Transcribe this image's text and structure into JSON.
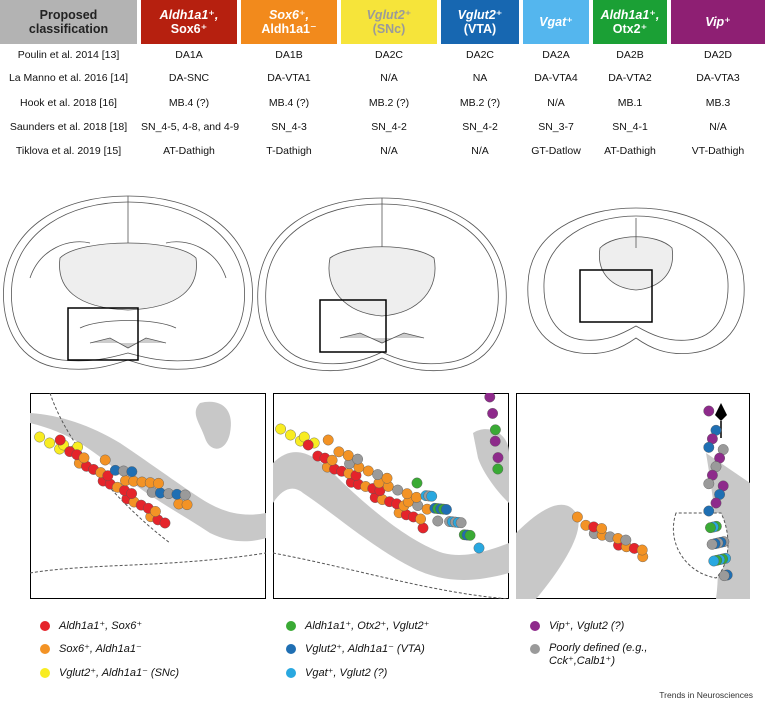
{
  "header": {
    "proposed": "Proposed classification",
    "cols": [
      {
        "id": "c1",
        "line1": "Aldh1a1⁺,",
        "line2": "Sox6⁺",
        "color": "#b6200f",
        "text": "#ffffff"
      },
      {
        "id": "c2",
        "line1": "Sox6⁺,",
        "line2": "Aldh1a1⁻",
        "color": "#f28a1c",
        "text": "#ffffff"
      },
      {
        "id": "c3",
        "line1": "Vglut2⁺",
        "line2": "(SNc)",
        "color": "#f6e43a",
        "text": "#9a9a9a"
      },
      {
        "id": "c4",
        "line1": "Vglut2⁺",
        "line2": "(VTA)",
        "color": "#1767b1",
        "text": "#ffffff"
      },
      {
        "id": "c5",
        "line1": "Vgat⁺",
        "line2": "",
        "color": "#54b6ee",
        "text": "#ffffff"
      },
      {
        "id": "c6",
        "line1": "Aldh1a1⁺,",
        "line2": "Otx2⁺",
        "color": "#1ba035",
        "text": "#ffffff"
      },
      {
        "id": "c7",
        "line1": "Vip⁺",
        "line2": "",
        "color": "#8e1f73",
        "text": "#ffffff"
      }
    ]
  },
  "rows": [
    {
      "label": "Poulin et al. 2014 [13]",
      "cells": [
        "DA1A",
        "DA1B",
        "DA2C",
        "DA2C",
        "DA2A",
        "DA2B",
        "DA2D"
      ]
    },
    {
      "label": "La Manno et al. 2016 [14]",
      "cells": [
        "DA-SNC",
        "DA-VTA1",
        "N/A",
        "NA",
        "DA-VTA4",
        "DA-VTA2",
        "DA-VTA3"
      ]
    },
    {
      "label": "Hook et al. 2018 [16]",
      "cells": [
        "MB.4 (?)",
        "MB.4 (?)",
        "MB.2 (?)",
        "MB.2 (?)",
        "N/A",
        "MB.1",
        "MB.3"
      ]
    },
    {
      "label": "Saunders et al. 2018 [18]",
      "cells": [
        "SN_4-5, 4-8, and 4-9",
        "SN_4-3",
        "SN_4-2",
        "SN_4-2",
        "SN_3-7",
        "SN_4-1",
        "N/A"
      ]
    },
    {
      "label": "Tiklova et al. 2019 [15]",
      "cells": [
        "AT-Dathigh",
        "T-Dathigh",
        "N/A",
        "N/A",
        "GT-Datlow",
        "AT-Dathigh",
        "VT-Dathigh"
      ]
    }
  ],
  "legend": {
    "items": [
      {
        "id": "red",
        "label": "Aldh1a1⁺, Sox6⁺",
        "color": "#e5242b"
      },
      {
        "id": "orange",
        "label": "Sox6⁺, Aldh1a1⁻",
        "color": "#f39325"
      },
      {
        "id": "yellow",
        "label": "Vglut2⁺, Aldh1a1⁻ (SNc)",
        "color": "#f8ec22"
      },
      {
        "id": "green",
        "label": "Aldh1a1⁺, Otx2⁺, Vglut2⁺",
        "color": "#3aaa35"
      },
      {
        "id": "blue",
        "label": "Vglut2⁺, Aldh1a1⁻ (VTA)",
        "color": "#1f6fb3"
      },
      {
        "id": "cyan",
        "label": "Vgat⁺, Vglut2 (?)",
        "color": "#29a8e0"
      },
      {
        "id": "purple",
        "label": "Vip⁺, Vglut2 (?)",
        "color": "#8e2a8b"
      },
      {
        "id": "grey",
        "label": "Poorly defined (e.g., Cck⁺,Calb1⁺)",
        "color": "#9a9a9a"
      }
    ]
  },
  "credit": "Trends in Neurosciences"
}
